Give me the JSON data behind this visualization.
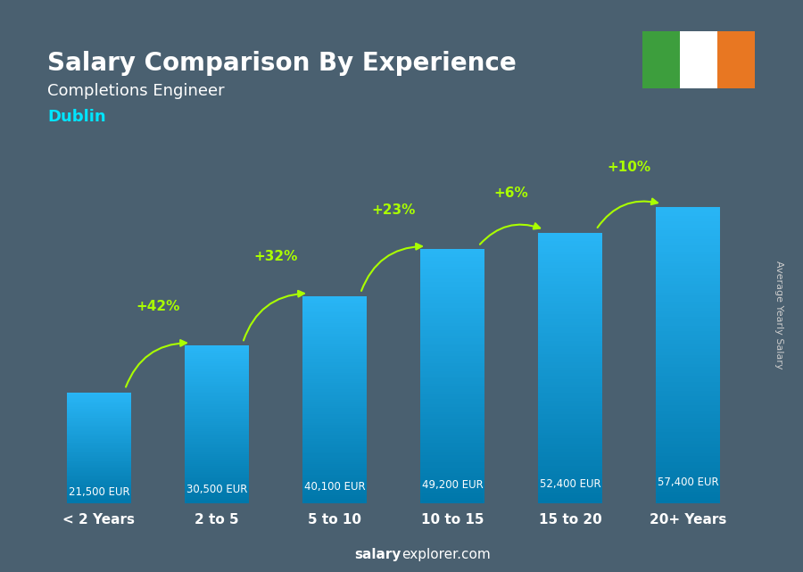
{
  "title": "Salary Comparison By Experience",
  "subtitle": "Completions Engineer",
  "city": "Dublin",
  "categories": [
    "< 2 Years",
    "2 to 5",
    "5 to 10",
    "10 to 15",
    "15 to 20",
    "20+ Years"
  ],
  "values": [
    21500,
    30500,
    40100,
    49200,
    52400,
    57400
  ],
  "value_labels": [
    "21,500 EUR",
    "30,500 EUR",
    "40,100 EUR",
    "49,200 EUR",
    "52,400 EUR",
    "57,400 EUR"
  ],
  "pct_changes": [
    "+42%",
    "+32%",
    "+23%",
    "+6%",
    "+10%"
  ],
  "bar_color_top": "#00bcd4",
  "bar_color_bottom": "#0077aa",
  "bg_color": "#4a6070",
  "title_color": "#ffffff",
  "subtitle_color": "#ffffff",
  "city_color": "#00e5ff",
  "label_color": "#ffffff",
  "pct_color": "#aaff00",
  "arrow_color": "#aaff00",
  "xlabel_color": "#ffffff",
  "footer_color": "#ffffff",
  "footer_bold": "salary",
  "footer_normal": "explorer.com",
  "ylabel_text": "Average Yearly Salary",
  "ylabel_color": "#cccccc",
  "flag_green": "#3d9e3d",
  "flag_white": "#ffffff",
  "flag_orange": "#e87722",
  "flag_border": "#cc8844"
}
